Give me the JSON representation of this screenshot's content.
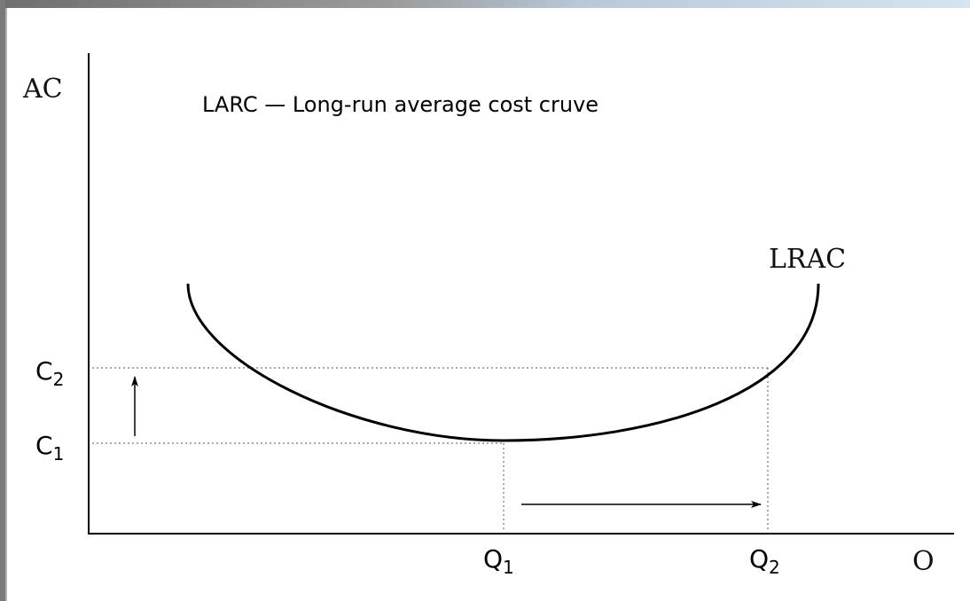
{
  "title": "LARC — Long-run average cost cruve",
  "y_axis_label": "AC",
  "x_axis_label": "O",
  "curve_label": "LRAC",
  "y_marks": [
    {
      "letter": "C",
      "sub": "2"
    },
    {
      "letter": "C",
      "sub": "1"
    }
  ],
  "x_marks": [
    {
      "letter": "Q",
      "sub": "1"
    },
    {
      "letter": "Q",
      "sub": "2"
    }
  ]
}
